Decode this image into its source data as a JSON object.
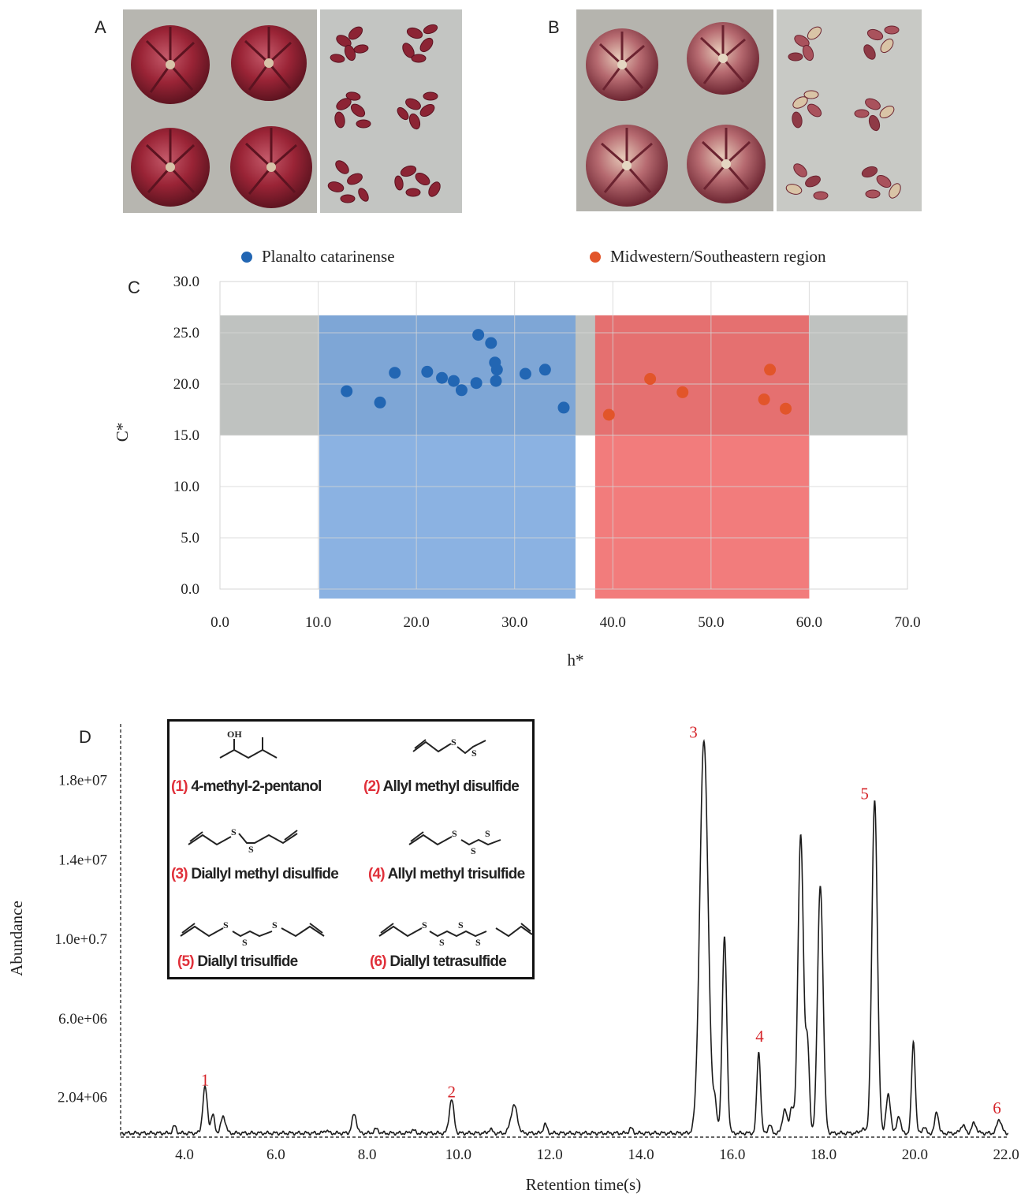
{
  "panels": {
    "a": "A",
    "b": "B",
    "c": "C",
    "d": "D"
  },
  "colors": {
    "planalto": "#2266b3",
    "midwestern": "#e2552a",
    "blue_region": "#6e9fdb",
    "red_region": "#ef5b5b",
    "gray_band": "#8a8f8c",
    "peak_label": "#d6262b"
  },
  "photos": {
    "a_bulbs": "purple-red garlic bulbs",
    "a_cloves": "purple-red garlic cloves",
    "b_bulbs": "pink-white garlic bulbs",
    "b_cloves": "pink-white garlic cloves"
  },
  "chart_data": [
    {
      "type": "scatter",
      "panel": "C",
      "xlabel": "h*",
      "ylabel": "C*",
      "xlim": [
        0,
        70
      ],
      "ylim": [
        0,
        30
      ],
      "x_ticks": [
        "0.0",
        "10.0",
        "20.0",
        "30.0",
        "40.0",
        "50.0",
        "60.0",
        "70.0"
      ],
      "y_ticks": [
        "0.0",
        "5.0",
        "10.0",
        "15.0",
        "20.0",
        "25.0",
        "30.0"
      ],
      "grid": true,
      "legend_position": "top",
      "series": [
        {
          "name": "Planalto catarinense",
          "color": "#2266b3",
          "points": [
            [
              12.9,
              19.3
            ],
            [
              16.3,
              18.2
            ],
            [
              17.8,
              21.1
            ],
            [
              21.1,
              21.2
            ],
            [
              22.6,
              20.6
            ],
            [
              23.8,
              20.3
            ],
            [
              24.6,
              19.4
            ],
            [
              26.1,
              20.1
            ],
            [
              26.3,
              24.8
            ],
            [
              27.6,
              24.0
            ],
            [
              28.0,
              22.1
            ],
            [
              28.2,
              21.4
            ],
            [
              28.1,
              20.3
            ],
            [
              31.1,
              21.0
            ],
            [
              33.1,
              21.4
            ],
            [
              35.0,
              17.7
            ]
          ]
        },
        {
          "name": "Midwestern/Southeastern region",
          "color": "#e2552a",
          "points": [
            [
              39.6,
              17.0
            ],
            [
              43.8,
              20.5
            ],
            [
              47.1,
              19.2
            ],
            [
              55.4,
              18.5
            ],
            [
              56.0,
              21.4
            ],
            [
              57.6,
              17.6
            ]
          ]
        }
      ],
      "regions": [
        {
          "name": "gray",
          "x": [
            0,
            70
          ],
          "y": [
            15.0,
            26.7
          ]
        },
        {
          "name": "blue",
          "x": [
            10.1,
            36.2
          ],
          "y": [
            -1.0,
            26.7
          ]
        },
        {
          "name": "red",
          "x": [
            38.2,
            60.0
          ],
          "y": [
            -1.0,
            26.7
          ]
        }
      ]
    },
    {
      "type": "line",
      "panel": "D",
      "xlabel": "Retention time(s)",
      "ylabel": "Abundance",
      "xlim": [
        2.6,
        22.05
      ],
      "ylim": [
        0,
        20800000
      ],
      "x_ticks": [
        "4.0",
        "6.0",
        "8.0",
        "10.0",
        "12.0",
        "14.0",
        "16.0",
        "18.0",
        "20.0",
        "22.0"
      ],
      "y_ticks": [
        {
          "value": 2040000,
          "label": "2.04+06"
        },
        {
          "value": 6000000,
          "label": "6.0e+06"
        },
        {
          "value": 10000000,
          "label": "1.0e+0.7"
        },
        {
          "value": 14000000,
          "label": "1.4e+07"
        },
        {
          "value": 18000000,
          "label": "1.8e+07"
        }
      ],
      "baseline": 200000,
      "peaks": [
        [
          3.78,
          350000,
          0.04
        ],
        [
          4.45,
          2300000,
          0.05
        ],
        [
          4.62,
          900000,
          0.04
        ],
        [
          4.85,
          850000,
          0.05
        ],
        [
          7.1,
          150000,
          0.04
        ],
        [
          7.72,
          950000,
          0.05
        ],
        [
          8.2,
          200000,
          0.05
        ],
        [
          9.0,
          150000,
          0.05
        ],
        [
          9.85,
          1700000,
          0.05
        ],
        [
          10.7,
          200000,
          0.04
        ],
        [
          11.22,
          1400000,
          0.07
        ],
        [
          11.9,
          450000,
          0.04
        ],
        [
          13.78,
          250000,
          0.04
        ],
        [
          15.38,
          19800000,
          0.09
        ],
        [
          15.62,
          1400000,
          0.04
        ],
        [
          15.83,
          9800000,
          0.05
        ],
        [
          16.58,
          4100000,
          0.04
        ],
        [
          16.82,
          400000,
          0.04
        ],
        [
          17.15,
          1200000,
          0.05
        ],
        [
          17.3,
          1300000,
          0.04
        ],
        [
          17.5,
          15000000,
          0.06
        ],
        [
          17.65,
          4300000,
          0.04
        ],
        [
          17.93,
          12500000,
          0.06
        ],
        [
          18.85,
          200000,
          0.05
        ],
        [
          19.12,
          16800000,
          0.06
        ],
        [
          19.42,
          1900000,
          0.05
        ],
        [
          19.65,
          900000,
          0.04
        ],
        [
          19.97,
          4600000,
          0.04
        ],
        [
          20.2,
          300000,
          0.04
        ],
        [
          20.48,
          1100000,
          0.04
        ],
        [
          21.05,
          400000,
          0.05
        ],
        [
          21.3,
          500000,
          0.05
        ],
        [
          21.85,
          700000,
          0.05
        ]
      ],
      "peak_labels": [
        {
          "label": "1",
          "x": 4.45,
          "y": 2600000
        },
        {
          "label": "2",
          "x": 9.85,
          "y": 2000000
        },
        {
          "label": "3",
          "x": 15.15,
          "y": 20100000
        },
        {
          "label": "4",
          "x": 16.6,
          "y": 4800000
        },
        {
          "label": "5",
          "x": 18.9,
          "y": 17000000
        },
        {
          "label": "6",
          "x": 21.8,
          "y": 1200000
        }
      ]
    }
  ],
  "inset": {
    "compounds": [
      {
        "num": "(1)",
        "name": "4-methyl-2-pentanol",
        "atoms": [
          "OH"
        ]
      },
      {
        "num": "(2)",
        "name": "Allyl methyl disulfide",
        "atoms": [
          "S",
          "S"
        ]
      },
      {
        "num": "(3)",
        "name": "Diallyl methyl disulfide",
        "atoms": [
          "S",
          "S"
        ]
      },
      {
        "num": "(4)",
        "name": "Allyl methyl trisulfide",
        "atoms": [
          "S",
          "S",
          "S"
        ]
      },
      {
        "num": "(5)",
        "name": "Diallyl trisulfide",
        "atoms": [
          "S",
          "S",
          "S"
        ]
      },
      {
        "num": "(6)",
        "name": "Diallyl tetrasulfide",
        "atoms": [
          "S",
          "S",
          "S",
          "S"
        ]
      }
    ]
  }
}
